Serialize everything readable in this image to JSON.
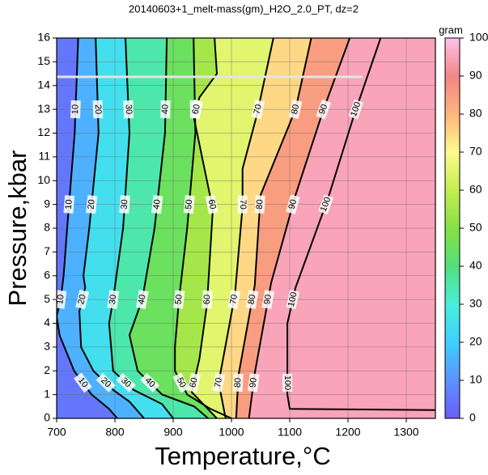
{
  "chart_data": {
    "type": "contour",
    "title": "20140603+1_melt-mass(gm)_H2O_2.0_PT, dz=2",
    "x_label": "Temperature,°C",
    "y_label": "Pressure,kbar",
    "colorbar_label": "gram",
    "xlim": [
      700,
      1350
    ],
    "xticks": [
      700,
      800,
      900,
      1000,
      1100,
      1200,
      1300
    ],
    "ylim": [
      0,
      16
    ],
    "yticks": [
      0,
      1,
      2,
      3,
      4,
      5,
      6,
      7,
      8,
      9,
      10,
      11,
      12,
      13,
      14,
      15,
      16
    ],
    "zlim": [
      0,
      100
    ],
    "zticks": [
      0,
      10,
      20,
      30,
      40,
      50,
      60,
      70,
      80,
      90,
      100
    ],
    "grid": true,
    "colormap": [
      "#6c5cf8",
      "#5c92ff",
      "#40cfff",
      "#48eedc",
      "#52e07a",
      "#86e044",
      "#c4ee50",
      "#fdfb8c",
      "#ffb47e",
      "#f28684",
      "#ffc2ee"
    ],
    "series": [
      {
        "name": "10",
        "level": 10,
        "x": [
          737,
          731,
          718,
          712,
          707,
          700,
          705,
          730,
          760,
          790,
          804
        ],
        "y": [
          16,
          12,
          8,
          6,
          5,
          4.3,
          3.5,
          2,
          1,
          0.4,
          0
        ]
      },
      {
        "name": "20",
        "level": 20,
        "x": [
          767,
          772,
          756,
          746,
          749,
          739,
          742,
          763,
          797,
          825,
          850
        ],
        "y": [
          16,
          12,
          8,
          6,
          5.5,
          4.5,
          3,
          2,
          1.2,
          0.7,
          0
        ]
      },
      {
        "name": "30",
        "level": 30,
        "x": [
          818,
          825,
          814,
          797,
          790,
          797,
          832,
          881,
          900
        ],
        "y": [
          16,
          12,
          8,
          5,
          4,
          2,
          1.2,
          0.6,
          0
        ]
      },
      {
        "name": "40",
        "level": 40,
        "x": [
          889,
          886,
          868,
          847,
          825,
          839,
          881,
          936,
          960
        ],
        "y": [
          16,
          12,
          8,
          5,
          3.5,
          2,
          1,
          0.5,
          0
        ]
      },
      {
        "name": "50",
        "level": 50,
        "x": [
          935,
          938,
          924,
          910,
          903,
          903,
          924,
          964,
          1000
        ],
        "y": [
          16,
          12,
          8,
          5,
          3,
          2,
          1,
          0.4,
          0
        ]
      },
      {
        "name": "60",
        "level": 60,
        "x": [
          971,
          975,
          945,
          936,
          968,
          958,
          945,
          932,
          975
        ],
        "y": [
          16,
          14.5,
          13.5,
          12.6,
          8.8,
          4.8,
          2.5,
          1.1,
          0
        ]
      },
      {
        "name": "70",
        "level": 70,
        "x": [
          1072,
          1044,
          1019,
          1019,
          1006,
          978,
          990
        ],
        "y": [
          16,
          12.8,
          10.5,
          8.9,
          5.2,
          1.5,
          0
        ]
      },
      {
        "name": "80",
        "level": 80,
        "x": [
          1137,
          1110,
          1050,
          1040,
          1012,
          1008
        ],
        "y": [
          16,
          13,
          9.4,
          5.6,
          1.8,
          0
        ]
      },
      {
        "name": "90",
        "level": 90,
        "x": [
          1203,
          1158,
          1110,
          1068,
          1040,
          1030
        ],
        "y": [
          16,
          13,
          9.4,
          5.7,
          1.9,
          0
        ]
      },
      {
        "name": "100",
        "level": 100,
        "x": [
          1256,
          1211,
          1165,
          1110,
          1096,
          1096,
          1100,
          1350
        ],
        "y": [
          16,
          12.8,
          9.2,
          5.5,
          4,
          1,
          0.4,
          0.35
        ]
      }
    ]
  }
}
